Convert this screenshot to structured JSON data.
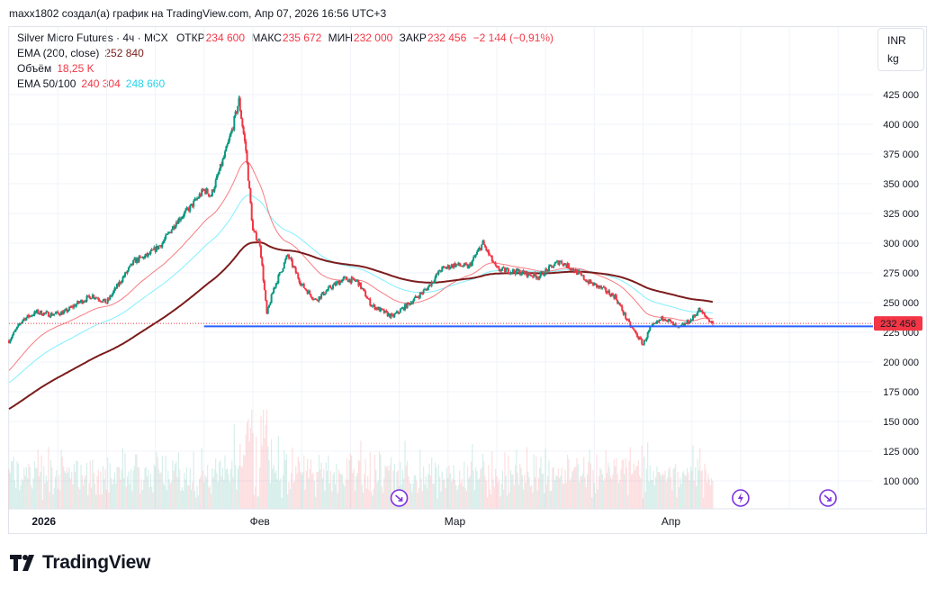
{
  "header": {
    "attribution": "maxx1802 создал(а) график на TradingView.com, Апр 07, 2026 16:56 UTC+3"
  },
  "legend": {
    "line1": {
      "symbol": "Silver Micro Futures · 4ч · MCX",
      "o_label": "ОТКР",
      "o": "234 600",
      "h_label": "МАКС",
      "h": "235 672",
      "l_label": "МИН",
      "l": "232 000",
      "c_label": "ЗАКР",
      "c": "232 456",
      "chg": "−2 144 (−0,91%)"
    },
    "line2": {
      "label": "EMA (200, close)",
      "value": "252 840"
    },
    "line3": {
      "label": "Объём",
      "value": "18,25 K"
    },
    "line4": {
      "label": "EMA 50/100",
      "value1": "240 304",
      "value2": "248 660"
    }
  },
  "units": {
    "currency": "INR",
    "unit": "kg"
  },
  "price_label": "232 456",
  "branding": {
    "name": "TradingView"
  },
  "colors": {
    "up": "#089981",
    "down": "#f23645",
    "ema200": "#7b1c1c",
    "ema50": "#f77c80",
    "ema100": "#80f0ff",
    "hline": "#2962ff"
  },
  "chart_data": {
    "type": "candlestick",
    "title": "Silver Micro Futures · 4ч · MCX",
    "currency": "INR",
    "y_ticks": [
      100000,
      125000,
      150000,
      175000,
      200000,
      225000,
      250000,
      275000,
      300000,
      325000,
      350000,
      375000,
      400000,
      425000
    ],
    "y_tick_labels": [
      "100 000",
      "125 000",
      "150 000",
      "175 000",
      "200 000",
      "225 000",
      "250 000",
      "275 000",
      "300 000",
      "325 000",
      "350 000",
      "375 000",
      "400 000",
      "425 000"
    ],
    "x_tick_labels": [
      "2026",
      "Фев",
      "Мар",
      "Апр"
    ],
    "x_tick_dates": [
      "2026-01-01",
      "2026-02-01",
      "2026-03-01",
      "2026-04-01"
    ],
    "x_range": [
      "2025-12-27",
      "2026-04-30"
    ],
    "ylim": [
      85000,
      440000
    ],
    "last_price": 232456,
    "horizontal_line": 230000,
    "close_series": [
      {
        "date": "2025-12-27",
        "close": 218000
      },
      {
        "date": "2025-12-29",
        "close": 236000
      },
      {
        "date": "2025-12-31",
        "close": 242000
      },
      {
        "date": "2026-01-02",
        "close": 240000
      },
      {
        "date": "2026-01-04",
        "close": 242000
      },
      {
        "date": "2026-01-06",
        "close": 250000
      },
      {
        "date": "2026-01-08",
        "close": 256000
      },
      {
        "date": "2026-01-10",
        "close": 250000
      },
      {
        "date": "2026-01-12",
        "close": 268000
      },
      {
        "date": "2026-01-14",
        "close": 285000
      },
      {
        "date": "2026-01-16",
        "close": 290000
      },
      {
        "date": "2026-01-18",
        "close": 300000
      },
      {
        "date": "2026-01-20",
        "close": 318000
      },
      {
        "date": "2026-01-22",
        "close": 330000
      },
      {
        "date": "2026-01-24",
        "close": 345000
      },
      {
        "date": "2026-01-25",
        "close": 340000
      },
      {
        "date": "2026-01-27",
        "close": 375000
      },
      {
        "date": "2026-01-28",
        "close": 395000
      },
      {
        "date": "2026-01-29",
        "close": 420000
      },
      {
        "date": "2026-01-30",
        "close": 378000
      },
      {
        "date": "2026-01-31",
        "close": 310000
      },
      {
        "date": "2026-02-01",
        "close": 300000
      },
      {
        "date": "2026-02-02",
        "close": 240000
      },
      {
        "date": "2026-02-03",
        "close": 262000
      },
      {
        "date": "2026-02-05",
        "close": 290000
      },
      {
        "date": "2026-02-07",
        "close": 265000
      },
      {
        "date": "2026-02-09",
        "close": 252000
      },
      {
        "date": "2026-02-11",
        "close": 262000
      },
      {
        "date": "2026-02-13",
        "close": 270000
      },
      {
        "date": "2026-02-15",
        "close": 268000
      },
      {
        "date": "2026-02-17",
        "close": 248000
      },
      {
        "date": "2026-02-20",
        "close": 238000
      },
      {
        "date": "2026-02-23",
        "close": 252000
      },
      {
        "date": "2026-02-25",
        "close": 262000
      },
      {
        "date": "2026-02-27",
        "close": 278000
      },
      {
        "date": "2026-03-01",
        "close": 282000
      },
      {
        "date": "2026-03-03",
        "close": 280000
      },
      {
        "date": "2026-03-05",
        "close": 300000
      },
      {
        "date": "2026-03-07",
        "close": 278000
      },
      {
        "date": "2026-03-10",
        "close": 276000
      },
      {
        "date": "2026-03-13",
        "close": 272000
      },
      {
        "date": "2026-03-16",
        "close": 285000
      },
      {
        "date": "2026-03-18",
        "close": 278000
      },
      {
        "date": "2026-03-20",
        "close": 268000
      },
      {
        "date": "2026-03-22",
        "close": 262000
      },
      {
        "date": "2026-03-24",
        "close": 255000
      },
      {
        "date": "2026-03-26",
        "close": 232000
      },
      {
        "date": "2026-03-28",
        "close": 215000
      },
      {
        "date": "2026-03-29",
        "close": 228000
      },
      {
        "date": "2026-03-31",
        "close": 238000
      },
      {
        "date": "2026-04-02",
        "close": 228000
      },
      {
        "date": "2026-04-04",
        "close": 236000
      },
      {
        "date": "2026-04-05",
        "close": 244000
      },
      {
        "date": "2026-04-06",
        "close": 238000
      },
      {
        "date": "2026-04-07",
        "close": 232456
      }
    ],
    "series": [
      {
        "name": "EMA (200, close)",
        "last": 252840
      },
      {
        "name": "EMA 50",
        "last": 240304
      },
      {
        "name": "EMA 100",
        "last": 248660
      }
    ]
  }
}
